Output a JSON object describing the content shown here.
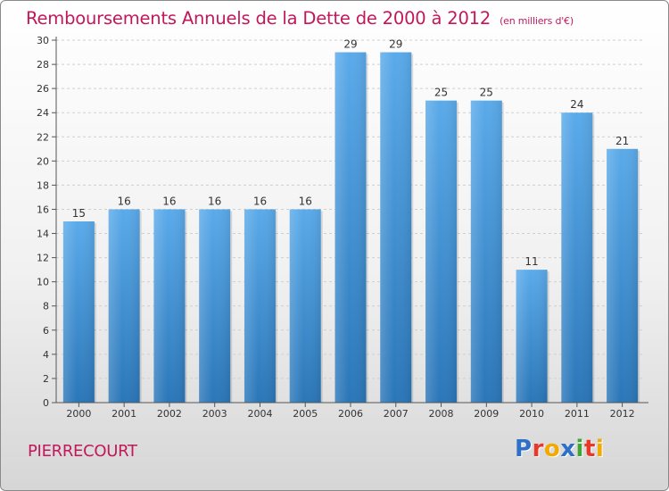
{
  "title": "Remboursements Annuels de la Dette de 2000 à 2012",
  "subtitle": "(en milliers d'€)",
  "commune": "PIERRECOURT",
  "logo": {
    "text": "Proxiti",
    "letters": [
      {
        "ch": "P",
        "color": "#2e6fc8"
      },
      {
        "ch": "r",
        "color": "#e8382a"
      },
      {
        "ch": "o",
        "color": "#f2a900"
      },
      {
        "ch": "x",
        "color": "#2e6fc8"
      },
      {
        "ch": "i",
        "color": "#3fa535"
      },
      {
        "ch": "t",
        "color": "#e8382a"
      },
      {
        "ch": "i",
        "color": "#f2a900"
      }
    ]
  },
  "colors": {
    "title": "#c2185b",
    "bar_top": "#5aaaea",
    "bar_bottom": "#2a76b8",
    "axis": "#555555",
    "grid": "#cfcfcf"
  },
  "chart_data": {
    "type": "bar",
    "title": "Remboursements Annuels de la Dette de 2000 à 2012",
    "subtitle": "(en milliers d'€)",
    "xlabel": "",
    "ylabel": "",
    "categories": [
      "2000",
      "2001",
      "2002",
      "2003",
      "2004",
      "2005",
      "2006",
      "2007",
      "2008",
      "2009",
      "2010",
      "2011",
      "2012"
    ],
    "values": [
      15,
      16,
      16,
      16,
      16,
      16,
      29,
      29,
      25,
      25,
      11,
      24,
      21
    ],
    "data_labels": [
      "15",
      "16",
      "16",
      "16",
      "16",
      "16",
      "29",
      "29",
      "25",
      "25",
      "11",
      "24",
      "21"
    ],
    "yticks": [
      "0",
      "2",
      "4",
      "6",
      "8",
      "10",
      "12",
      "14",
      "16",
      "18",
      "20",
      "22",
      "24",
      "26",
      "28",
      "30"
    ],
    "ylim": [
      0,
      30
    ],
    "grid": true,
    "legend": "none"
  }
}
